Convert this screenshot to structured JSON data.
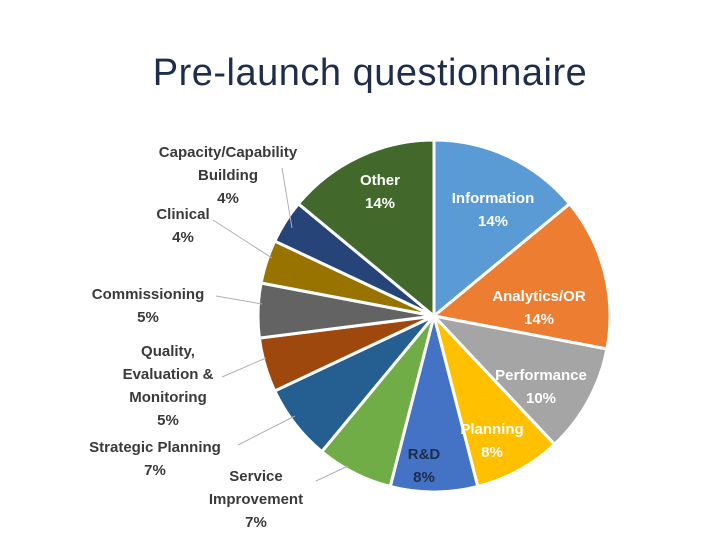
{
  "title": "Pre-launch questionnaire",
  "chart_data": {
    "type": "pie",
    "title": "Pre-launch questionnaire",
    "slices": [
      {
        "label": [
          "Information"
        ],
        "value": 14,
        "display": "14%",
        "color": "#5b9bd5"
      },
      {
        "label": [
          "Analytics/OR"
        ],
        "value": 14,
        "display": "14%",
        "color": "#ed7d31"
      },
      {
        "label": [
          "Performance"
        ],
        "value": 10,
        "display": "10%",
        "color": "#a5a5a5"
      },
      {
        "label": [
          "Planning"
        ],
        "value": 8,
        "display": "8%",
        "color": "#ffc000"
      },
      {
        "label": [
          "R&D"
        ],
        "value": 8,
        "display": "8%",
        "color": "#4472c4"
      },
      {
        "label": [
          "Service",
          "Improvement"
        ],
        "value": 7,
        "display": "7%",
        "color": "#70ad47"
      },
      {
        "label": [
          "Strategic Planning"
        ],
        "value": 7,
        "display": "7%",
        "color": "#255e91"
      },
      {
        "label": [
          "Quality,",
          "Evaluation &",
          "Monitoring"
        ],
        "value": 5,
        "display": "5%",
        "color": "#9e480e"
      },
      {
        "label": [
          "Commissioning"
        ],
        "value": 5,
        "display": "5%",
        "color": "#636363"
      },
      {
        "label": [
          "Clinical"
        ],
        "value": 4,
        "display": "4%",
        "color": "#997300"
      },
      {
        "label": [
          "Capacity/Capability",
          "Building"
        ],
        "value": 4,
        "display": "4%",
        "color": "#264478"
      },
      {
        "label": [
          "Other"
        ],
        "value": 14,
        "display": "14%",
        "color": "#43682b"
      }
    ]
  }
}
